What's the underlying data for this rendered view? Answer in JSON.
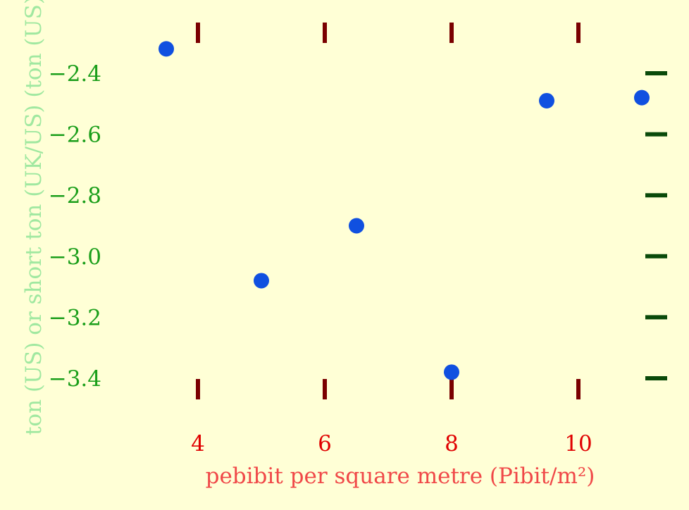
{
  "chart_data": {
    "type": "scatter",
    "xlabel": "pebibit per square metre (Pibit/m²)",
    "ylabel": "ton (US) or short ton (UK/US) (ton (US))",
    "xlim": [
      2.5,
      11.5
    ],
    "ylim": [
      -3.55,
      -2.22
    ],
    "x_ticks": [
      4,
      6,
      8,
      10
    ],
    "x_tick_labels": [
      "4",
      "6",
      "8",
      "10"
    ],
    "y_ticks": [
      -2.4,
      -2.6,
      -2.8,
      -3.0,
      -3.2,
      -3.4
    ],
    "y_tick_labels": [
      "−2.4",
      "−2.6",
      "−2.8",
      "−3.0",
      "−3.2",
      "−3.4"
    ],
    "grid": false,
    "points": [
      {
        "x": 3.5,
        "y": -2.32
      },
      {
        "x": 5.0,
        "y": -3.08
      },
      {
        "x": 6.5,
        "y": -2.9
      },
      {
        "x": 8.0,
        "y": -3.38
      },
      {
        "x": 9.5,
        "y": -2.49
      },
      {
        "x": 11.0,
        "y": -2.48
      }
    ],
    "colors": {
      "background": "#ffffd6",
      "point": "#1050e0",
      "x_tick_mark": "#7a0000",
      "x_tick_label": "#e00000",
      "x_title": "#f04848",
      "y_tick_mark": "#0a4a0a",
      "y_tick_label": "#1a9e1a",
      "y_title": "#a0e8a0"
    }
  }
}
